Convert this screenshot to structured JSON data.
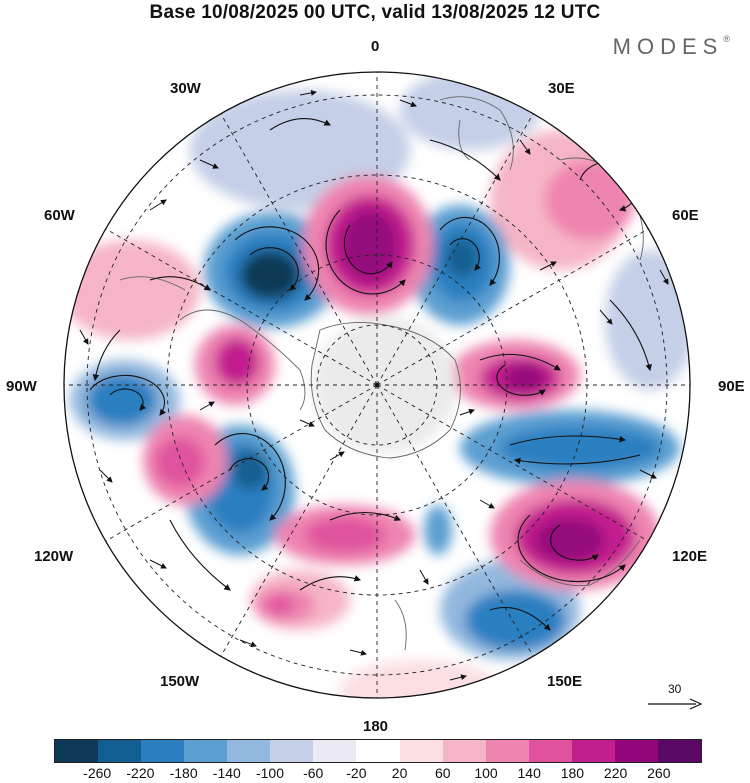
{
  "header": {
    "title": "Base 10/08/2025 00 UTC, valid 13/08/2025 12 UTC",
    "brand": "MODES",
    "brand_mark": "®"
  },
  "map": {
    "projection": "polar-stereographic-north",
    "longitude_labels": {
      "top": "0",
      "top_right": "30E",
      "upper_right": "60E",
      "right": "90E",
      "lower_right": "120E",
      "bottom_right": "150E",
      "bottom": "180",
      "bottom_left": "150W",
      "lower_left": "120W",
      "left": "90W",
      "upper_left": "60W",
      "top_left": "30W"
    },
    "reference_vector": {
      "label": "30"
    }
  },
  "legend": {
    "colors": [
      "#0e3a57",
      "#135e91",
      "#2b7fc1",
      "#5b9fd1",
      "#93b8de",
      "#c5cfe7",
      "#ebe9f4",
      "#ffffff",
      "#fbdfe2",
      "#f6b5c6",
      "#ee84b0",
      "#e0529e",
      "#c21f8e",
      "#94077c",
      "#5b0766"
    ],
    "ticks": [
      "-260",
      "-220",
      "-180",
      "-140",
      "-100",
      "-60",
      "-20",
      "20",
      "60",
      "100",
      "140",
      "180",
      "220",
      "260"
    ]
  }
}
